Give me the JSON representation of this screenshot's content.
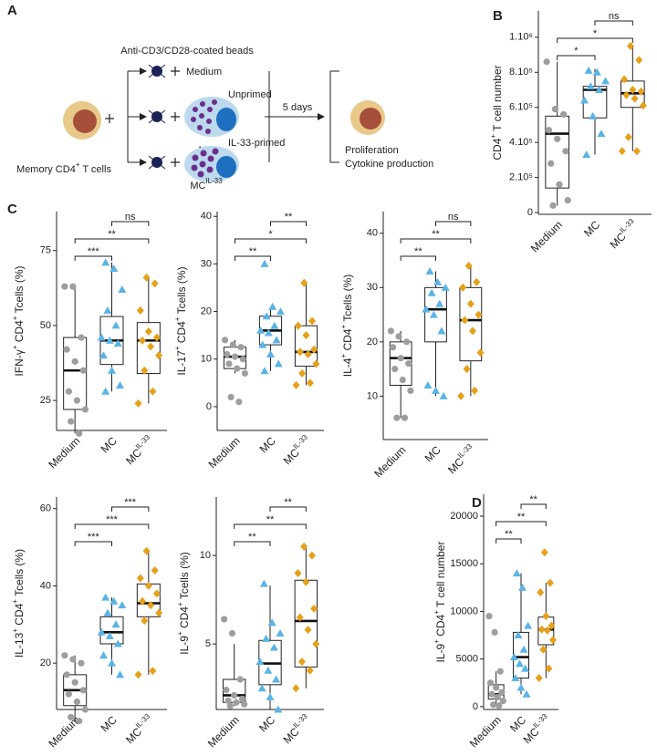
{
  "diagram": {
    "panel": "A",
    "beads": "Anti-CD3/CD28-coated beads",
    "medium": "Medium",
    "unprimed": "Unprimed",
    "mc": "MC",
    "primed": "IL-33-primed",
    "mc_il33": [
      "MC",
      "IL-33"
    ],
    "duration": "5 days",
    "cell": [
      "Memory CD4",
      "+",
      " T cells"
    ],
    "outcome": [
      "Proliferation",
      "Cytokine production"
    ]
  },
  "chart_data": [
    {
      "type": "box",
      "panel": "B",
      "ylabel": [
        "CD4",
        "+",
        " T cell number"
      ],
      "categories": [
        "Medium",
        "MC",
        "MC"
      ],
      "category_superscripts": [
        null,
        null,
        "IL-33"
      ],
      "colors": [
        "#9e9e9e",
        "#5ab4e5",
        "#e6a01a"
      ],
      "markers": [
        "circle",
        "triangle",
        "diamond"
      ],
      "ylim": [
        -10000,
        1150000
      ],
      "yticks": [
        0,
        {
          "value": 200000,
          "label": "2.10⁵"
        },
        {
          "value": 400000,
          "label": "4.10⁵"
        },
        {
          "value": 600000,
          "label": "6.10⁵"
        },
        {
          "value": 800000,
          "label": "8.10⁵"
        },
        {
          "value": 1000000,
          "label": "1.10⁶"
        }
      ],
      "whisker_low": [
        40000,
        330000,
        350000
      ],
      "q1": [
        140000,
        540000,
        600000
      ],
      "median": [
        450000,
        700000,
        680000
      ],
      "q3": [
        550000,
        720000,
        750000
      ],
      "whisker_high": [
        860000,
        820000,
        950000
      ],
      "points": [
        [
          860000,
          590000,
          560000,
          470000,
          420000,
          350000,
          280000,
          160000,
          70000,
          40000
        ],
        [
          810000,
          800000,
          750000,
          720000,
          700000,
          640000,
          550000,
          450000,
          330000
        ],
        [
          950000,
          870000,
          760000,
          700000,
          690000,
          670000,
          650000,
          610000,
          430000,
          350000,
          350000
        ]
      ],
      "comparisons": [
        {
          "groups": [
            0,
            1
          ],
          "label": "*"
        },
        {
          "groups": [
            0,
            2
          ],
          "label": "*"
        },
        {
          "groups": [
            1,
            2
          ],
          "label": "ns"
        }
      ]
    },
    {
      "type": "box",
      "panel": "C",
      "ylabel": [
        "IFN-γ",
        "+",
        " CD4",
        "+",
        " Tcells (%)"
      ],
      "categories": [
        "Medium",
        "MC",
        "MC"
      ],
      "category_superscripts": [
        null,
        null,
        "IL-33"
      ],
      "colors": [
        "#9e9e9e",
        "#5ab4e5",
        "#e6a01a"
      ],
      "markers": [
        "circle",
        "triangle",
        "diamond"
      ],
      "ylim": [
        15,
        88
      ],
      "yticks": [
        25,
        50,
        75
      ],
      "whisker_low": [
        14,
        28,
        24
      ],
      "q1": [
        22,
        37,
        34
      ],
      "median": [
        35,
        45,
        45
      ],
      "q3": [
        46,
        53,
        51
      ],
      "whisker_high": [
        63,
        71,
        66
      ],
      "points": [
        [
          63,
          63,
          46,
          42,
          38,
          35,
          28,
          25,
          22,
          18,
          14
        ],
        [
          71,
          69,
          62,
          55,
          50,
          46,
          45,
          44,
          40,
          35,
          30,
          28
        ],
        [
          66,
          64,
          55,
          48,
          46,
          45,
          43,
          40,
          35,
          28,
          24
        ]
      ],
      "comparisons": [
        {
          "groups": [
            0,
            1
          ],
          "label": "***"
        },
        {
          "groups": [
            0,
            2
          ],
          "label": "**"
        },
        {
          "groups": [
            1,
            2
          ],
          "label": "ns"
        }
      ]
    },
    {
      "type": "box",
      "ylabel": [
        "IL-17",
        "+",
        " CD4",
        "+",
        " Tcells (%)"
      ],
      "categories": [
        "Medium",
        "MC",
        "MC"
      ],
      "category_superscripts": [
        null,
        null,
        "IL-33"
      ],
      "colors": [
        "#9e9e9e",
        "#5ab4e5",
        "#e6a01a"
      ],
      "markers": [
        "circle",
        "triangle",
        "diamond"
      ],
      "ylim": [
        -5,
        41
      ],
      "yticks": [
        0,
        10,
        20,
        30,
        40
      ],
      "whisker_low": [
        7,
        7.5,
        4.5
      ],
      "q1": [
        8,
        13,
        8.5
      ],
      "median": [
        10.5,
        16,
        11.5
      ],
      "q3": [
        12.5,
        19,
        17
      ],
      "whisker_high": [
        14,
        21,
        26
      ],
      "points": [
        [
          14,
          13,
          12.5,
          11,
          10.5,
          10,
          9,
          8,
          7,
          2,
          1
        ],
        [
          30,
          21,
          20,
          19,
          17,
          16,
          15.5,
          14,
          13,
          11,
          9,
          7.5
        ],
        [
          26,
          18,
          17,
          15,
          12,
          11.5,
          11,
          9,
          7,
          5,
          4.5
        ]
      ],
      "comparisons": [
        {
          "groups": [
            0,
            1
          ],
          "label": "**"
        },
        {
          "groups": [
            0,
            2
          ],
          "label": "*"
        },
        {
          "groups": [
            1,
            2
          ],
          "label": "**"
        }
      ]
    },
    {
      "type": "box",
      "ylabel": [
        "IL-4",
        "+",
        " CD4",
        "+",
        " Tcells (%)"
      ],
      "categories": [
        "Medium",
        "MC",
        "MC"
      ],
      "category_superscripts": [
        null,
        null,
        "IL-33"
      ],
      "colors": [
        "#9e9e9e",
        "#5ab4e5",
        "#e6a01a"
      ],
      "markers": [
        "circle",
        "triangle",
        "diamond"
      ],
      "ylim": [
        2,
        44
      ],
      "yticks": [
        10,
        20,
        30,
        40
      ],
      "whisker_low": [
        6,
        10,
        10
      ],
      "q1": [
        12,
        20,
        16.5
      ],
      "median": [
        17,
        26,
        24
      ],
      "q3": [
        20,
        30,
        30
      ],
      "whisker_high": [
        22,
        33,
        34
      ],
      "points": [
        [
          22,
          21,
          20,
          19,
          17,
          16,
          15,
          13,
          11,
          6,
          6
        ],
        [
          33,
          31,
          30,
          29,
          27,
          26,
          25,
          22,
          12,
          11,
          10
        ],
        [
          34,
          31,
          30,
          27,
          25,
          24,
          22,
          18,
          15,
          11,
          10
        ]
      ],
      "comparisons": [
        {
          "groups": [
            0,
            1
          ],
          "label": "**"
        },
        {
          "groups": [
            0,
            2
          ],
          "label": "**"
        },
        {
          "groups": [
            1,
            2
          ],
          "label": "ns"
        }
      ]
    },
    {
      "type": "box",
      "ylabel": [
        "IL-13",
        "+",
        " CD4",
        "+",
        " Tcells (%)"
      ],
      "categories": [
        "Medium",
        "MC",
        "MC"
      ],
      "category_superscripts": [
        null,
        null,
        "IL-33"
      ],
      "colors": [
        "#9e9e9e",
        "#5ab4e5",
        "#e6a01a"
      ],
      "markers": [
        "circle",
        "triangle",
        "diamond"
      ],
      "ylim": [
        8,
        63
      ],
      "yticks": [
        20,
        40,
        60
      ],
      "whisker_low": [
        5,
        17,
        17
      ],
      "q1": [
        9,
        25,
        32
      ],
      "median": [
        13,
        28,
        35.5
      ],
      "q3": [
        17,
        32,
        40.5
      ],
      "whisker_high": [
        22,
        37,
        49
      ],
      "points": [
        [
          22,
          21,
          20,
          17,
          15,
          13,
          12,
          10,
          8,
          6,
          5
        ],
        [
          37,
          36,
          35,
          33,
          30,
          28,
          27,
          25,
          22,
          20,
          17
        ],
        [
          49,
          44,
          42,
          40,
          38,
          36,
          35,
          33,
          31,
          18,
          17
        ]
      ],
      "comparisons": [
        {
          "groups": [
            0,
            1
          ],
          "label": "***"
        },
        {
          "groups": [
            0,
            2
          ],
          "label": "***"
        },
        {
          "groups": [
            1,
            2
          ],
          "label": "***"
        }
      ]
    },
    {
      "type": "box",
      "ylabel": [
        "IL-9",
        "+",
        " CD4",
        "+",
        " Tcells (%)"
      ],
      "categories": [
        "Medium",
        "MC",
        "MC"
      ],
      "category_superscripts": [
        null,
        null,
        "IL-33"
      ],
      "colors": [
        "#9e9e9e",
        "#5ab4e5",
        "#e6a01a"
      ],
      "markers": [
        "circle",
        "triangle",
        "diamond"
      ],
      "ylim": [
        1.3,
        13.3
      ],
      "yticks": [
        5,
        10
      ],
      "whisker_low": [
        1.5,
        1.3,
        2.5
      ],
      "q1": [
        1.7,
        2.7,
        3.7
      ],
      "median": [
        2.1,
        3.9,
        6.3
      ],
      "q3": [
        3,
        5.2,
        8.6
      ],
      "whisker_high": [
        5,
        8.3,
        10.5
      ],
      "points": [
        [
          6.4,
          5.6,
          3,
          2.4,
          2.1,
          1.9,
          1.8,
          1.7,
          1.6,
          1.5
        ],
        [
          8.4,
          6.2,
          5.6,
          5.3,
          4.8,
          4,
          3.5,
          3,
          2.5,
          2,
          1.3
        ],
        [
          10.5,
          10,
          9,
          8.5,
          7,
          6.5,
          5.8,
          5,
          4,
          3.5,
          2.5
        ]
      ],
      "comparisons": [
        {
          "groups": [
            0,
            1
          ],
          "label": "**"
        },
        {
          "groups": [
            0,
            2
          ],
          "label": "**"
        },
        {
          "groups": [
            1,
            2
          ],
          "label": "**"
        }
      ]
    },
    {
      "type": "box",
      "panel": "D",
      "ylabel": [
        "IL-9",
        "+",
        " CD4",
        "+",
        " T cell number"
      ],
      "categories": [
        "Medium",
        "MC",
        "MC"
      ],
      "category_superscripts": [
        null,
        null,
        "IL-33"
      ],
      "colors": [
        "#9e9e9e",
        "#5ab4e5",
        "#e6a01a"
      ],
      "markers": [
        "circle",
        "triangle",
        "diamond"
      ],
      "ylim": [
        -300,
        22300
      ],
      "yticks": [
        0,
        5000,
        10000,
        15000,
        20000
      ],
      "whisker_low": [
        100,
        1300,
        3000
      ],
      "q1": [
        800,
        3000,
        6500
      ],
      "median": [
        1300,
        5200,
        8100
      ],
      "q3": [
        2300,
        7800,
        9400
      ],
      "whisker_high": [
        3700,
        14000,
        13000
      ],
      "points": [
        [
          9500,
          7800,
          3700,
          2500,
          2000,
          1500,
          1300,
          1000,
          600,
          200,
          100
        ],
        [
          14000,
          12500,
          8500,
          7500,
          6000,
          5200,
          4500,
          4000,
          3000,
          2000,
          1300
        ],
        [
          16200,
          13000,
          12000,
          9500,
          8500,
          8100,
          8000,
          7000,
          6000,
          4000,
          3000
        ]
      ],
      "comparisons": [
        {
          "groups": [
            0,
            1
          ],
          "label": "**"
        },
        {
          "groups": [
            0,
            2
          ],
          "label": "**"
        },
        {
          "groups": [
            1,
            2
          ],
          "label": "**"
        }
      ]
    }
  ]
}
